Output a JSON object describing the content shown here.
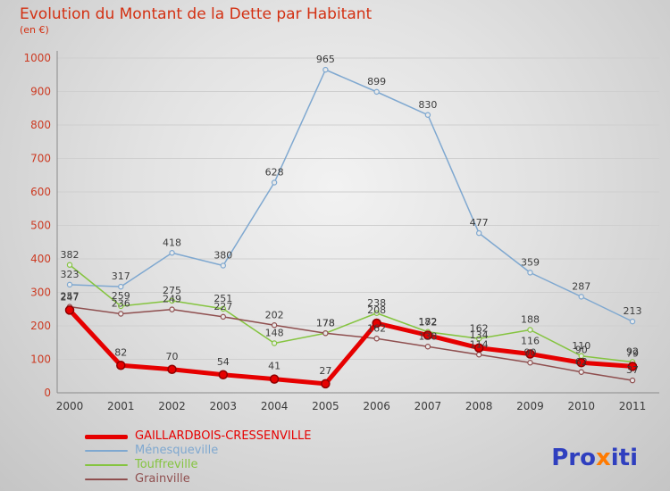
{
  "title": "Evolution du Montant de la Dette par Habitant",
  "subtitle": "(en €)",
  "chart_data": {
    "type": "line",
    "x": [
      2000,
      2001,
      2002,
      2003,
      2004,
      2005,
      2006,
      2007,
      2008,
      2009,
      2010,
      2011
    ],
    "ylim": [
      0,
      1000
    ],
    "ytick_step": 100,
    "grid": true,
    "legend_position": "bottom-left",
    "series": [
      {
        "name": "GAILLARDBOIS-CRESSENVILLE",
        "color": "#e60000",
        "width": 5,
        "values": [
          247,
          82,
          70,
          54,
          41,
          27,
          208,
          172,
          134,
          116,
          90,
          79
        ]
      },
      {
        "name": "Ménesqueville",
        "color": "#7fa8d0",
        "width": 1.5,
        "values": [
          323,
          317,
          418,
          380,
          628,
          965,
          899,
          830,
          477,
          359,
          287,
          213
        ]
      },
      {
        "name": "Touffreville",
        "color": "#85c440",
        "width": 1.5,
        "values": [
          382,
          259,
          275,
          251,
          148,
          178,
          238,
          182,
          162,
          188,
          110,
          92
        ]
      },
      {
        "name": "Grainville",
        "color": "#8f4f4f",
        "width": 1.5,
        "values": [
          257,
          236,
          249,
          227,
          202,
          178,
          162,
          138,
          114,
          90,
          62,
          37
        ]
      }
    ]
  },
  "logo": {
    "part1": "Pro",
    "part2": "x",
    "part3": "iti"
  }
}
